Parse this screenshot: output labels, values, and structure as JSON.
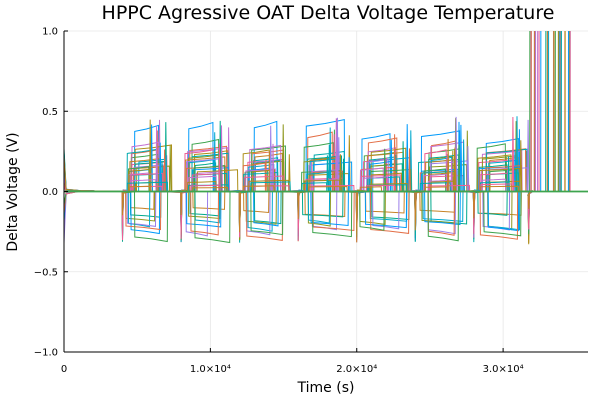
{
  "chart_data": {
    "type": "line",
    "title": "HPPC Agressive OAT Delta Voltage Temperature",
    "xlabel": "Time (s)",
    "ylabel": "Delta Voltage (V)",
    "xlim": [
      0,
      35800
    ],
    "ylim": [
      -1.0,
      1.0
    ],
    "xticks": [
      {
        "value": 0,
        "label": "0"
      },
      {
        "value": 10000,
        "label": "1.0×10⁴"
      },
      {
        "value": 20000,
        "label": "2.0×10⁴"
      },
      {
        "value": 30000,
        "label": "3.0×10⁴"
      }
    ],
    "yticks": [
      {
        "value": -1.0,
        "label": "−1.0"
      },
      {
        "value": -0.5,
        "label": "−0.5"
      },
      {
        "value": 0.0,
        "label": "0.0"
      },
      {
        "value": 0.5,
        "label": "0.5"
      },
      {
        "value": 1.0,
        "label": "1.0"
      }
    ],
    "grid": true,
    "legend": "none",
    "pulse_times": [
      0,
      4000,
      8000,
      12000,
      16000,
      20000,
      24000,
      28000
    ],
    "divergence_time": 31800,
    "series_count": 32,
    "series_colors": [
      "#009afa",
      "#e36f47",
      "#3ea44e",
      "#c371d2",
      "#ac8e18",
      "#00aaae",
      "#ed5e93",
      "#c68225",
      "#00a98d",
      "#8e971e",
      "#00a9cd",
      "#9b7fe9"
    ],
    "series_levels": [
      0.38,
      0.31,
      0.28,
      0.26,
      0.24,
      0.23,
      0.22,
      0.21,
      0.2,
      0.19,
      0.18,
      0.17,
      0.16,
      0.15,
      0.14,
      0.13,
      0.12,
      0.11,
      0.1,
      -0.13,
      -0.17,
      -0.2,
      -0.22,
      -0.24,
      -0.25,
      -0.27,
      -0.29,
      0.08,
      0.06,
      0.05,
      0.04,
      0.03
    ]
  }
}
